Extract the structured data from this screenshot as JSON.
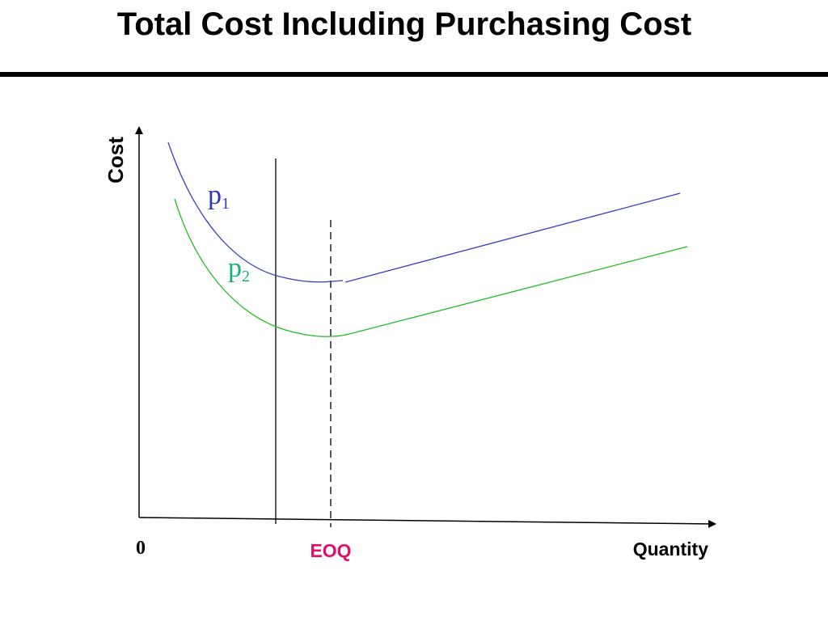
{
  "title": "Total Cost Including Purchasing Cost",
  "axes": {
    "y_label": "Cost",
    "x_label": "Quantity",
    "origin_label": "0"
  },
  "markers": {
    "eoq_label": "EOQ"
  },
  "curves": [
    {
      "name": "p",
      "subscript": "1",
      "color": "#3a3fbf"
    },
    {
      "name": "p",
      "subscript": "2",
      "color": "#22bb22"
    }
  ],
  "colors": {
    "axis": "#000000",
    "eoq_label": "#e0106a",
    "p1_label": "#2c36b8",
    "p2_label": "#13b07a"
  }
}
